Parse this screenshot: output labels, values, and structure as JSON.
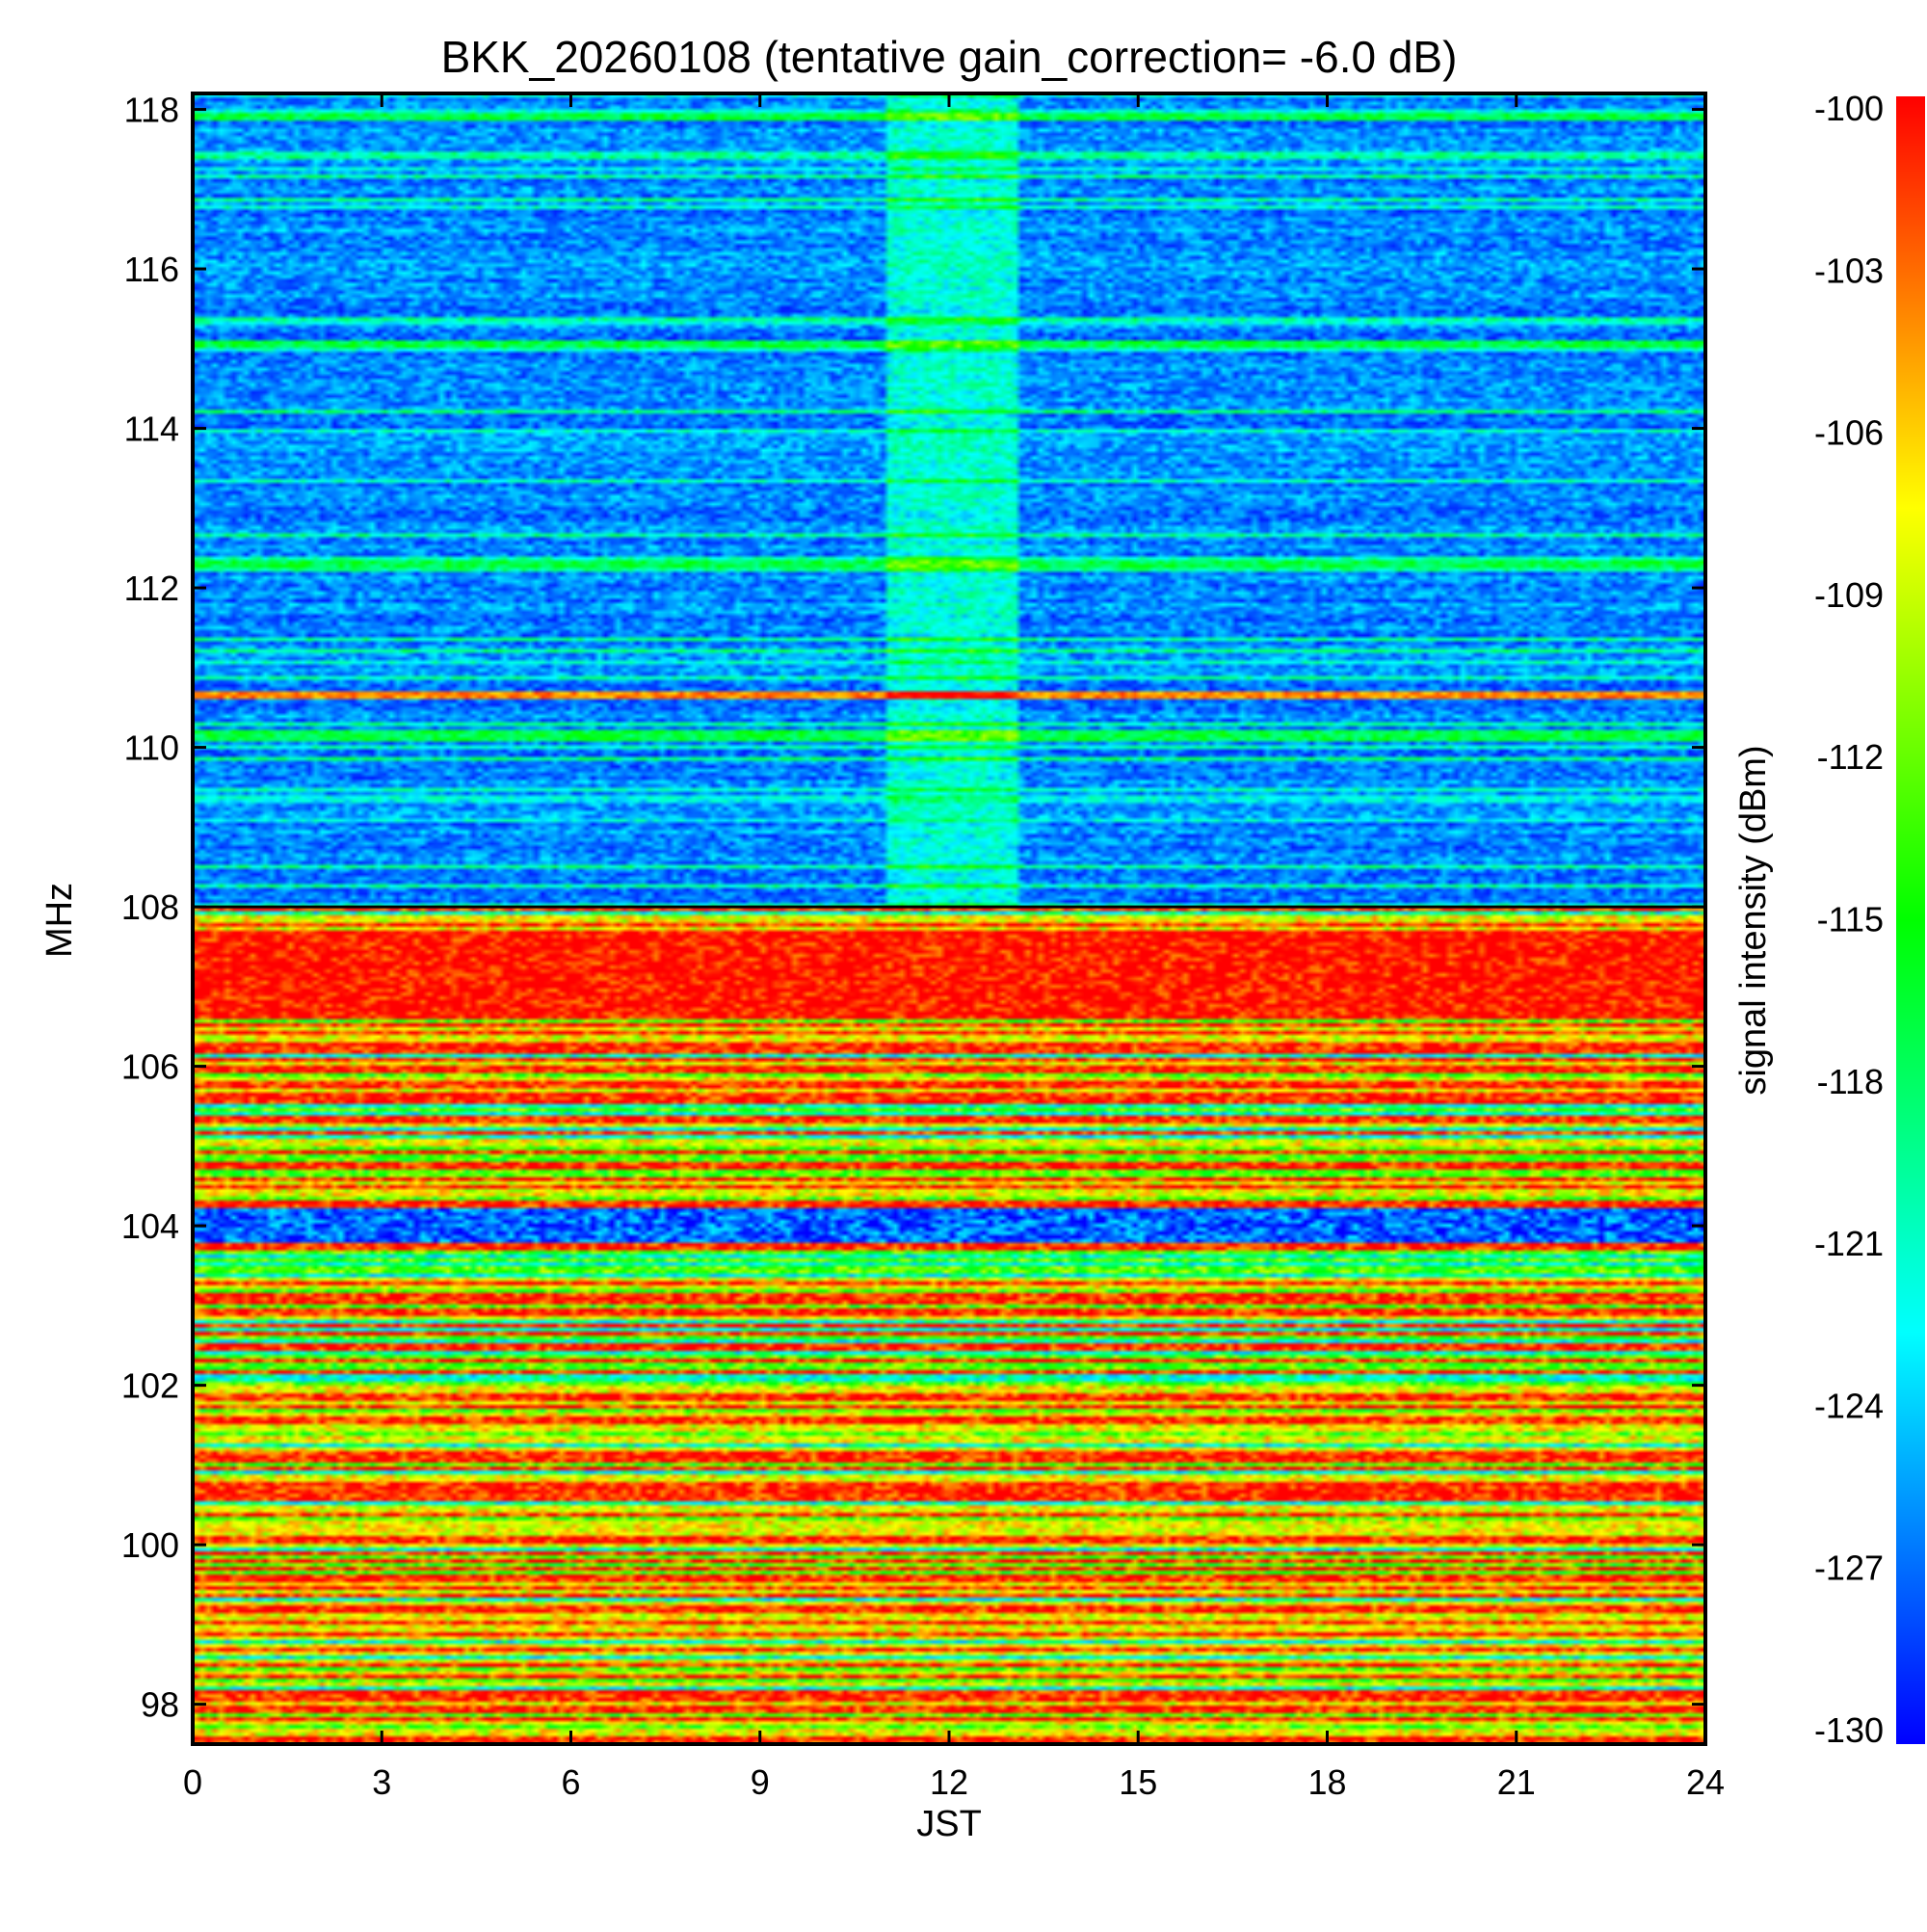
{
  "chart_data": {
    "type": "heatmap",
    "title": "BKK_20260108 (tentative gain_correction= -6.0 dB)",
    "xlabel": "JST",
    "ylabel": "MHz",
    "colorbar_label": "signal intensity (dBm)",
    "xlim": [
      0,
      24
    ],
    "ylim": [
      97.5,
      118.2
    ],
    "x_ticks": [
      0,
      3,
      6,
      9,
      12,
      15,
      18,
      21,
      24
    ],
    "y_ticks": [
      98,
      100,
      102,
      104,
      106,
      108,
      110,
      112,
      114,
      116,
      118
    ],
    "color_range": [
      -130,
      -100
    ],
    "colorbar_ticks": [
      -100,
      -103,
      -106,
      -109,
      -112,
      -115,
      -118,
      -121,
      -124,
      -127,
      -130
    ],
    "colormap": [
      "#0000ff",
      "#00ffff",
      "#00ff00",
      "#ffff00",
      "#ff0000"
    ],
    "description_levels": {
      "airband_108_118_MHz_typical_dBm": -127,
      "fm_band_98_108_MHz_typical_dBm": -105,
      "daytime_enhancement_JST": [
        11,
        13.1
      ]
    }
  }
}
